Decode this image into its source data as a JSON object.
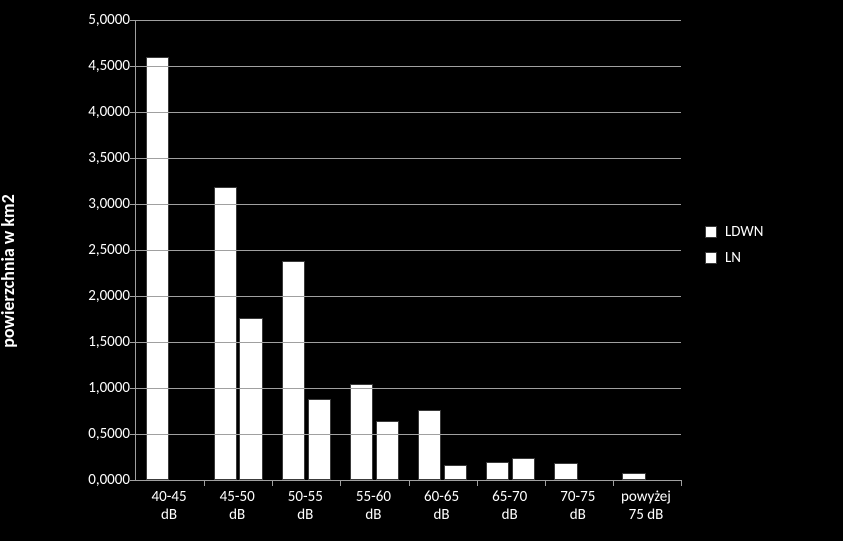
{
  "chart": {
    "type": "bar",
    "background_color": "#000000",
    "text_color": "#ffffff",
    "grid_color": "#a0a0a0",
    "bar_fill": "#ffffff",
    "bar_border": "#3a3a3a",
    "ylabel": "powierzchnia w km2",
    "ylabel_fontsize": 18,
    "tick_fontsize": 15,
    "catlabel_fontsize": 15,
    "ylim_min": 0,
    "ylim_max": 5,
    "ytick_step": 0.5,
    "yticks": [
      "0,0000",
      "0,5000",
      "1,0000",
      "1,5000",
      "2,0000",
      "2,5000",
      "3,0000",
      "3,5000",
      "4,0000",
      "4,5000",
      "5,0000"
    ],
    "categories": [
      "40-45 dB",
      "45-50 dB",
      "50-55 dB",
      "55-60 dB",
      "60-65 dB",
      "65-70 dB",
      "70-75 dB",
      "powyżej 75 dB"
    ],
    "series": [
      {
        "name": "LDWN",
        "color": "#ffffff",
        "values": [
          4.6,
          3.19,
          2.38,
          1.04,
          0.76,
          0.2,
          0.19,
          0.08
        ]
      },
      {
        "name": "LN",
        "color": "#ffffff",
        "values": [
          null,
          1.76,
          0.88,
          0.64,
          0.16,
          0.24,
          null,
          null
        ]
      }
    ],
    "bar_gap_ratio": 0.28,
    "cluster_gap_ratio": 0.05,
    "legend": {
      "items": [
        "LDWN",
        "LN"
      ]
    }
  }
}
